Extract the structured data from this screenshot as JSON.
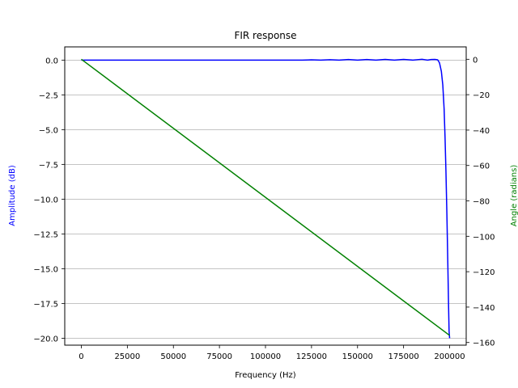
{
  "chart_data": {
    "type": "line",
    "title": "FIR response",
    "xlabel": "Frequency (Hz)",
    "ylabel_left": "Amplitude (dB)",
    "ylabel_right": "Angle (radians)",
    "xlim": [
      -9000,
      209000
    ],
    "ylim_left": [
      -20.5,
      0.95
    ],
    "ylim_right": [
      -161.5,
      7
    ],
    "x_ticks": [
      0,
      25000,
      50000,
      75000,
      100000,
      125000,
      150000,
      175000,
      200000
    ],
    "y_ticks_left": [
      0.0,
      -2.5,
      -5.0,
      -7.5,
      -10.0,
      -12.5,
      -15.0,
      -17.5,
      -20.0
    ],
    "y_tick_labels_left": [
      "0.0",
      "−2.5",
      "−5.0",
      "−7.5",
      "−10.0",
      "−12.5",
      "−15.0",
      "−17.5",
      "−20.0"
    ],
    "y_ticks_right": [
      0,
      -20,
      -40,
      -60,
      -80,
      -100,
      -120,
      -140,
      -160
    ],
    "y_tick_labels_right": [
      "0",
      "−20",
      "−40",
      "−60",
      "−80",
      "−100",
      "−120",
      "−140",
      "−160"
    ],
    "grid": "horizontal (left axis)",
    "series": [
      {
        "axis": "left",
        "color": "#0000ff",
        "x": [
          0,
          50000,
          100000,
          120000,
          125000,
          130000,
          135000,
          140000,
          145000,
          150000,
          155000,
          160000,
          165000,
          170000,
          175000,
          180000,
          185000,
          188000,
          190000,
          192000,
          193500,
          194500,
          195500,
          196300,
          197000,
          197500,
          198000,
          198500,
          199000,
          199400,
          199700,
          200000
        ],
        "values": [
          0.0,
          0.0,
          0.0,
          0.0,
          0.02,
          0.0,
          0.03,
          0.0,
          0.04,
          0.0,
          0.04,
          0.0,
          0.05,
          0.0,
          0.05,
          0.0,
          0.06,
          0.0,
          0.04,
          0.05,
          0.02,
          -0.2,
          -0.8,
          -1.8,
          -3.5,
          -5.5,
          -8.0,
          -11.0,
          -14.5,
          -17.5,
          -19.5,
          -20.0
        ]
      },
      {
        "axis": "right",
        "color": "#008000",
        "x": [
          0,
          200000
        ],
        "values": [
          0,
          -156
        ]
      }
    ]
  }
}
